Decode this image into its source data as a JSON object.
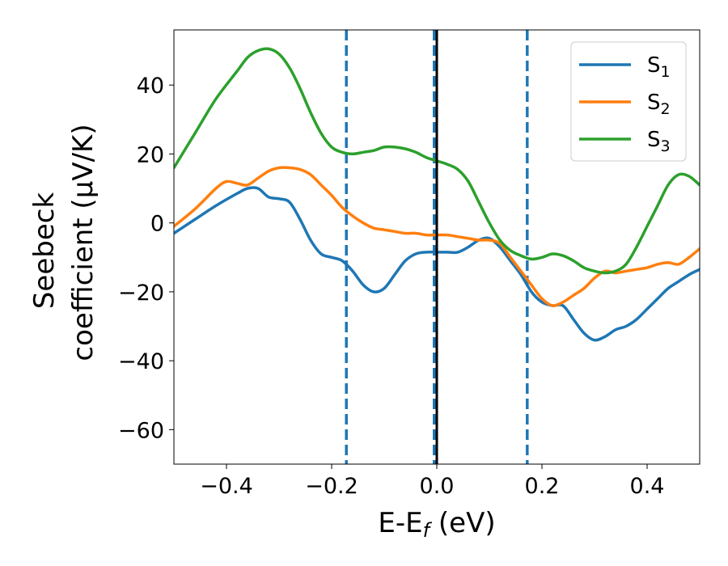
{
  "chart_data": {
    "type": "line",
    "xlabel": "E-E",
    "xlabel_sub": "f",
    "xlabel_unit": " (eV)",
    "ylabel_line1": "Seebeck",
    "ylabel_line2": "coefficient  (μV/K)",
    "xlim": [
      -0.5,
      0.5
    ],
    "ylim": [
      -70,
      56
    ],
    "xticks": [
      -0.4,
      -0.2,
      0.0,
      0.2,
      0.4
    ],
    "xtick_labels": [
      "−0.4",
      "−0.2",
      "0.0",
      "0.2",
      "0.4"
    ],
    "yticks": [
      -60,
      -40,
      -20,
      0,
      20,
      40
    ],
    "ytick_labels": [
      "−60",
      "−40",
      "−20",
      "0",
      "20",
      "40"
    ],
    "grid": false,
    "legend_position": "top-right",
    "vertical_lines": [
      {
        "x": -0.172,
        "style": "dashed",
        "color": "#1f77b4"
      },
      {
        "x": -0.005,
        "style": "dashed",
        "color": "#1f77b4"
      },
      {
        "x": 0.172,
        "style": "dashed",
        "color": "#1f77b4"
      },
      {
        "x": 0.0,
        "style": "solid",
        "color": "#000000"
      }
    ],
    "series": [
      {
        "name": "S",
        "sub": "1",
        "color": "#1f77b4",
        "x": [
          -0.5,
          -0.46,
          -0.42,
          -0.38,
          -0.36,
          -0.34,
          -0.32,
          -0.3,
          -0.28,
          -0.26,
          -0.24,
          -0.22,
          -0.2,
          -0.18,
          -0.16,
          -0.14,
          -0.12,
          -0.1,
          -0.08,
          -0.06,
          -0.04,
          -0.02,
          0.0,
          0.02,
          0.04,
          0.06,
          0.08,
          0.1,
          0.12,
          0.14,
          0.16,
          0.18,
          0.2,
          0.22,
          0.24,
          0.26,
          0.28,
          0.3,
          0.32,
          0.34,
          0.36,
          0.38,
          0.4,
          0.42,
          0.44,
          0.46,
          0.48,
          0.5
        ],
        "y": [
          -3,
          1,
          5,
          8.5,
          10,
          10,
          7.5,
          7,
          6,
          1,
          -5,
          -9,
          -10,
          -11,
          -14,
          -18,
          -20,
          -19,
          -15,
          -11,
          -9,
          -8.5,
          -8.5,
          -8.5,
          -8.5,
          -7,
          -5,
          -4.5,
          -7,
          -11,
          -15,
          -20,
          -23,
          -24,
          -24,
          -28,
          -32,
          -34,
          -33,
          -31,
          -30,
          -28,
          -25,
          -22,
          -19,
          -17,
          -15,
          -13.5
        ]
      },
      {
        "name": "S",
        "sub": "2",
        "color": "#ff7f0e",
        "x": [
          -0.5,
          -0.46,
          -0.42,
          -0.4,
          -0.38,
          -0.36,
          -0.34,
          -0.32,
          -0.3,
          -0.28,
          -0.26,
          -0.24,
          -0.22,
          -0.2,
          -0.18,
          -0.16,
          -0.14,
          -0.12,
          -0.1,
          -0.08,
          -0.06,
          -0.04,
          -0.02,
          0.0,
          0.02,
          0.04,
          0.06,
          0.08,
          0.1,
          0.12,
          0.14,
          0.16,
          0.18,
          0.2,
          0.22,
          0.24,
          0.26,
          0.28,
          0.3,
          0.32,
          0.34,
          0.36,
          0.38,
          0.4,
          0.42,
          0.44,
          0.46,
          0.48,
          0.5
        ],
        "y": [
          -1,
          4,
          10,
          12,
          11.5,
          11,
          13,
          15,
          16,
          16,
          15.5,
          14,
          11,
          8,
          4.5,
          2,
          0,
          -1.5,
          -2,
          -2.5,
          -3,
          -3,
          -3.5,
          -3.5,
          -3.5,
          -4,
          -4.5,
          -5,
          -5,
          -6,
          -10,
          -14,
          -18,
          -22,
          -24,
          -23,
          -21,
          -19,
          -16,
          -14,
          -14.5,
          -14,
          -13.5,
          -13,
          -12,
          -11.5,
          -12,
          -10,
          -7.5
        ]
      },
      {
        "name": "S",
        "sub": "3",
        "color": "#2ca02c",
        "x": [
          -0.5,
          -0.46,
          -0.42,
          -0.38,
          -0.36,
          -0.34,
          -0.32,
          -0.3,
          -0.28,
          -0.26,
          -0.24,
          -0.22,
          -0.2,
          -0.18,
          -0.16,
          -0.14,
          -0.12,
          -0.1,
          -0.08,
          -0.06,
          -0.04,
          -0.02,
          0.0,
          0.02,
          0.04,
          0.06,
          0.08,
          0.1,
          0.12,
          0.14,
          0.16,
          0.18,
          0.2,
          0.22,
          0.24,
          0.26,
          0.28,
          0.3,
          0.32,
          0.34,
          0.36,
          0.38,
          0.4,
          0.42,
          0.44,
          0.46,
          0.48,
          0.5
        ],
        "y": [
          16,
          26,
          36,
          44,
          48,
          50,
          50.5,
          49,
          45,
          39,
          32,
          26,
          22,
          20.5,
          20,
          20.5,
          21,
          22,
          22,
          21.5,
          20.5,
          19,
          18,
          17,
          15.5,
          12,
          6,
          0,
          -5,
          -8,
          -9.5,
          -10.5,
          -10,
          -9,
          -9.5,
          -11,
          -13,
          -14,
          -14.5,
          -14,
          -12,
          -7,
          -1,
          5,
          11,
          14,
          13.5,
          11
        ]
      }
    ]
  }
}
